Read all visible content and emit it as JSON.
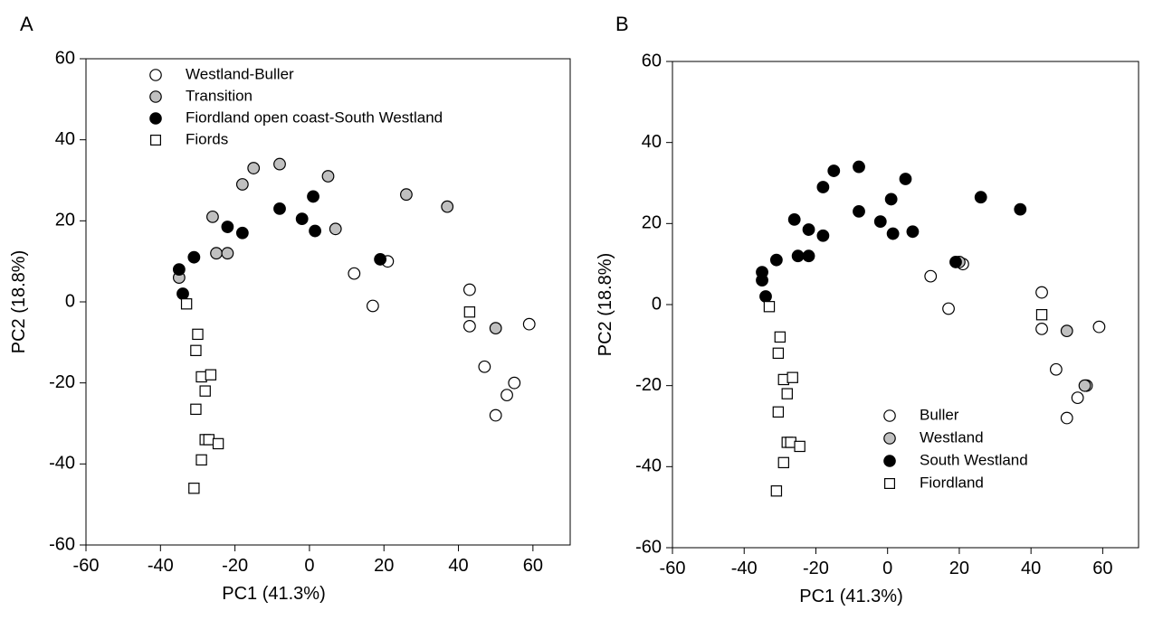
{
  "chart_data": [
    {
      "panel_label": "A",
      "type": "scatter",
      "xlabel": "PC1 (41.3%)",
      "ylabel": "PC2 (18.8%)",
      "xlim": [
        -60,
        70
      ],
      "ylim": [
        -60,
        60
      ],
      "xticks": [
        -60,
        -40,
        -20,
        0,
        20,
        40,
        60
      ],
      "yticks": [
        -60,
        -40,
        -20,
        0,
        20,
        40,
        60
      ],
      "grid": false,
      "legend_position": "top-left",
      "series": [
        {
          "name": "Westland-Buller",
          "marker": "circle",
          "fill": "#ffffff",
          "points": [
            [
              12,
              7
            ],
            [
              21,
              10
            ],
            [
              17,
              -1
            ],
            [
              43,
              3
            ],
            [
              43,
              -6
            ],
            [
              47,
              -16
            ],
            [
              50,
              -28
            ],
            [
              53,
              -23
            ],
            [
              55,
              -20
            ],
            [
              59,
              -5.5
            ]
          ]
        },
        {
          "name": "Transition",
          "marker": "circle",
          "fill": "#c0c0c0",
          "points": [
            [
              -35,
              6
            ],
            [
              -26,
              21
            ],
            [
              -25,
              12
            ],
            [
              -22,
              12
            ],
            [
              -18,
              29
            ],
            [
              -15,
              33
            ],
            [
              -8,
              34
            ],
            [
              5,
              31
            ],
            [
              7,
              18
            ],
            [
              26,
              26.5
            ],
            [
              37,
              23.5
            ],
            [
              50,
              -6.5
            ]
          ]
        },
        {
          "name": "Fiordland open coast-South Westland",
          "marker": "circle",
          "fill": "#000000",
          "points": [
            [
              -35,
              8
            ],
            [
              -34,
              2
            ],
            [
              -31,
              11
            ],
            [
              -22,
              18.5
            ],
            [
              -18,
              17
            ],
            [
              -8,
              23
            ],
            [
              -2,
              20.5
            ],
            [
              1,
              26
            ],
            [
              1.5,
              17.5
            ],
            [
              19,
              10.5
            ]
          ]
        },
        {
          "name": "Fiords",
          "marker": "square",
          "fill": "#ffffff",
          "points": [
            [
              -33,
              -0.5
            ],
            [
              -30,
              -8
            ],
            [
              -30.5,
              -12
            ],
            [
              -29,
              -18.5
            ],
            [
              -26.5,
              -18
            ],
            [
              -28,
              -22
            ],
            [
              -30.5,
              -26.5
            ],
            [
              -28,
              -34
            ],
            [
              -27,
              -34
            ],
            [
              -24.5,
              -35
            ],
            [
              -29,
              -39
            ],
            [
              -31,
              -46
            ],
            [
              43,
              -2.5
            ]
          ]
        }
      ]
    },
    {
      "panel_label": "B",
      "type": "scatter",
      "xlabel": "PC1 (41.3%)",
      "ylabel": "PC2 (18.8%)",
      "xlim": [
        -60,
        70
      ],
      "ylim": [
        -60,
        60
      ],
      "xticks": [
        -60,
        -40,
        -20,
        0,
        20,
        40,
        60
      ],
      "yticks": [
        -60,
        -40,
        -20,
        0,
        20,
        40,
        60
      ],
      "grid": false,
      "legend_position": "bottom-right",
      "series": [
        {
          "name": "Buller",
          "marker": "circle",
          "fill": "#ffffff",
          "points": [
            [
              12,
              7
            ],
            [
              21,
              10
            ],
            [
              17,
              -1
            ],
            [
              43,
              3
            ],
            [
              43,
              -6
            ],
            [
              47,
              -16
            ],
            [
              50,
              -28
            ],
            [
              53,
              -23
            ],
            [
              55.5,
              -20
            ],
            [
              59,
              -5.5
            ]
          ]
        },
        {
          "name": "Westland",
          "marker": "circle",
          "fill": "#c0c0c0",
          "points": [
            [
              20,
              10.5
            ],
            [
              50,
              -6.5
            ],
            [
              55,
              -20
            ]
          ]
        },
        {
          "name": "South Westland",
          "marker": "circle",
          "fill": "#000000",
          "points": [
            [
              -35,
              8
            ],
            [
              -35,
              6
            ],
            [
              -34,
              2
            ],
            [
              -31,
              11
            ],
            [
              -26,
              21
            ],
            [
              -25,
              12
            ],
            [
              -22,
              12
            ],
            [
              -22,
              18.5
            ],
            [
              -18,
              17
            ],
            [
              -18,
              29
            ],
            [
              -15,
              33
            ],
            [
              -8,
              34
            ],
            [
              -8,
              23
            ],
            [
              -2,
              20.5
            ],
            [
              1,
              26
            ],
            [
              1.5,
              17.5
            ],
            [
              5,
              31
            ],
            [
              7,
              18
            ],
            [
              19,
              10.5
            ],
            [
              26,
              26.5
            ],
            [
              37,
              23.5
            ]
          ]
        },
        {
          "name": "Fiordland",
          "marker": "square",
          "fill": "#ffffff",
          "points": [
            [
              -33,
              -0.5
            ],
            [
              -30,
              -8
            ],
            [
              -30.5,
              -12
            ],
            [
              -29,
              -18.5
            ],
            [
              -26.5,
              -18
            ],
            [
              -28,
              -22
            ],
            [
              -30.5,
              -26.5
            ],
            [
              -28,
              -34
            ],
            [
              -27,
              -34
            ],
            [
              -24.5,
              -35
            ],
            [
              -29,
              -39
            ],
            [
              -31,
              -46
            ],
            [
              43,
              -2.5
            ]
          ]
        }
      ]
    }
  ]
}
